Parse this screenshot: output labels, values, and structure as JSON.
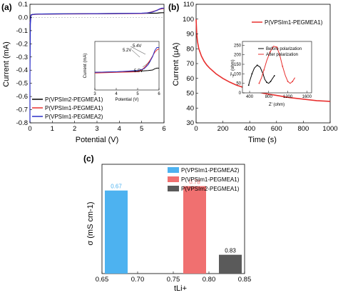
{
  "chart_data": [
    {
      "panel_label": "(a)",
      "type": "line",
      "xlabel": "Potential (V)",
      "ylabel": "Current (mA)",
      "xlim": [
        0,
        6
      ],
      "ylim": [
        -0.8,
        0.1
      ],
      "xticks": [
        "0",
        "1",
        "2",
        "3",
        "4",
        "5",
        "6"
      ],
      "yticks": [
        "0.1",
        "0.0",
        "-0.1",
        "-0.2",
        "-0.3",
        "-0.4",
        "-0.5",
        "-0.6",
        "-0.7",
        "-0.8"
      ],
      "legend_position": "bottom-left",
      "series": [
        {
          "name": "P(VPSIm2-PEGMEA1)",
          "color": "#000000",
          "x": [
            0.0,
            0.05,
            0.1,
            0.2,
            0.3,
            0.5,
            1.0,
            2.0,
            3.0,
            4.0,
            5.0,
            5.5,
            5.7,
            5.8,
            5.9,
            6.0
          ],
          "y": [
            -0.05,
            0.02,
            0.022,
            0.024,
            0.025,
            0.026,
            0.027,
            0.028,
            0.029,
            0.03,
            0.031,
            0.032,
            0.033,
            0.035,
            0.036,
            0.036
          ]
        },
        {
          "name": "P(VPSIm1-PEGMEA1)",
          "color": "#e8302f",
          "x": [
            0.0,
            0.05,
            0.1,
            0.2,
            0.3,
            0.5,
            1.0,
            2.0,
            3.0,
            4.0,
            5.0,
            5.2,
            5.4,
            5.6,
            5.8,
            5.9,
            6.0
          ],
          "y": [
            -0.05,
            0.02,
            0.021,
            0.023,
            0.024,
            0.025,
            0.026,
            0.027,
            0.028,
            0.029,
            0.03,
            0.033,
            0.04,
            0.05,
            0.062,
            0.066,
            0.068
          ]
        },
        {
          "name": "P(VPSIm1-PEGMEA2)",
          "color": "#2b2fc9",
          "x": [
            0.0,
            0.05,
            0.1,
            0.2,
            0.3,
            0.5,
            1.0,
            2.0,
            3.0,
            4.0,
            5.0,
            5.3,
            5.5,
            5.7,
            5.8,
            5.9,
            6.0
          ],
          "y": [
            -0.05,
            0.02,
            0.022,
            0.024,
            0.025,
            0.026,
            0.027,
            0.028,
            0.029,
            0.03,
            0.032,
            0.035,
            0.042,
            0.055,
            0.065,
            0.07,
            0.07
          ]
        }
      ],
      "inset": {
        "xlabel": "Potential (V)",
        "ylabel": "Current (mA)",
        "xlim": [
          3,
          6
        ],
        "xticks": [
          "3",
          "4",
          "5",
          "6"
        ],
        "annotations": [
          "5.4V",
          "5.2V",
          "5.5V"
        ]
      }
    },
    {
      "panel_label": "(b)",
      "type": "line",
      "xlabel": "Time (s)",
      "ylabel": "Current (µA)",
      "xlim": [
        0,
        1000
      ],
      "ylim": [
        30,
        110
      ],
      "xticks": [
        "0",
        "200",
        "400",
        "600",
        "800",
        "1000"
      ],
      "yticks": [
        "110",
        "100",
        "90",
        "80",
        "70",
        "60",
        "50",
        "40",
        "30"
      ],
      "legend_position": "top-right",
      "series": [
        {
          "name": "P(VPSIm1-PEGMEA1)",
          "color": "#e8302f",
          "x": [
            0,
            5,
            10,
            20,
            40,
            60,
            80,
            100,
            150,
            200,
            250,
            300,
            400,
            500,
            600,
            700,
            800,
            900,
            1000
          ],
          "y": [
            100,
            90,
            85,
            80,
            75,
            71.5,
            69,
            67,
            63,
            60,
            57.5,
            55.5,
            52.5,
            50,
            48.5,
            47,
            46,
            45,
            44.5
          ]
        }
      ],
      "inset": {
        "xlabel": "Z' (ohm)",
        "ylabel": "-Z'' (ohm)",
        "xticks": [
          "400",
          "800",
          "1200",
          "1600"
        ],
        "yticks": [
          "0",
          "50",
          "100",
          "150",
          "200",
          "250"
        ],
        "series": [
          {
            "name": "Before polarization",
            "color": "#000000",
            "x": [
              380,
              400,
              450,
              500,
              560,
              620,
              680,
              720,
              760,
              800,
              840,
              880,
              920
            ],
            "y": [
              40,
              60,
              100,
              130,
              145,
              135,
              100,
              70,
              55,
              50,
              60,
              75,
              90
            ]
          },
          {
            "name": "After polarization",
            "color": "#e8302f",
            "x": [
              600,
              650,
              700,
              760,
              830,
              900,
              970,
              1030,
              1090,
              1150,
              1200,
              1250,
              1300,
              1350
            ],
            "y": [
              50,
              80,
              120,
              170,
              215,
              245,
              240,
              200,
              140,
              90,
              60,
              50,
              60,
              80
            ]
          }
        ]
      }
    },
    {
      "panel_label": "(c)",
      "type": "bar",
      "xlabel": "tLi+",
      "ylabel": "σ (mS cm-1)",
      "xlim": [
        0.65,
        0.85
      ],
      "ylim": [
        0,
        0.25
      ],
      "xticks": [
        "0.65",
        "0.70",
        "0.75",
        "0.80",
        "0.85"
      ],
      "legend_position": "top-right",
      "bars": [
        {
          "name": "P(VPSIm1-PEGMEA2)",
          "x": 0.67,
          "y": 0.19,
          "label": "0.67",
          "color": "#4db2f0"
        },
        {
          "name": "P(VPSIm1-PEGMEA1)",
          "x": 0.78,
          "y": 0.2,
          "label": "0.78",
          "color": "#f07070"
        },
        {
          "name": "P(VPSIm2-PEGMEA1)",
          "x": 0.83,
          "y": 0.043,
          "label": "0.83",
          "color": "#5a5a5a"
        }
      ]
    }
  ]
}
